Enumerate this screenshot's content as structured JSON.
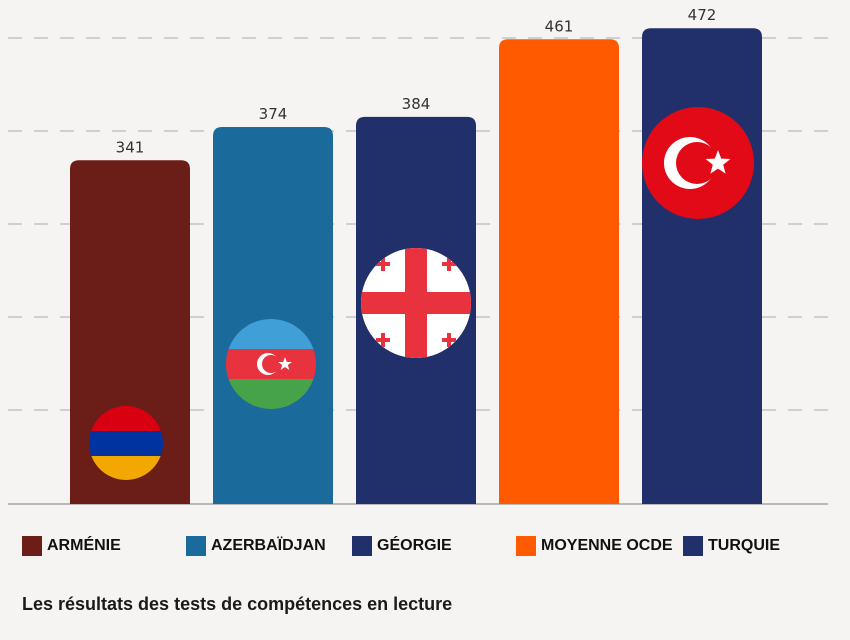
{
  "chart_data": {
    "type": "bar",
    "title": "Les résultats des tests de compétences en lecture",
    "categories": [
      "ARMÉNIE",
      "AZERBAÏDJAN",
      "GÉORGIE",
      "MOYENNE OCDE",
      "TURQUIE"
    ],
    "values": [
      341,
      374,
      384,
      461,
      472
    ],
    "ylim": [
      0,
      500
    ],
    "grid": true,
    "legend": "bottom",
    "colors": [
      "#6b1d17",
      "#1a6a9c",
      "#21306b",
      "#ff5a00",
      "#21306b"
    ],
    "icons": [
      "armenia-flag-icon",
      "azerbaijan-flag-icon",
      "georgia-flag-icon",
      "",
      "turkey-flag-icon"
    ]
  }
}
